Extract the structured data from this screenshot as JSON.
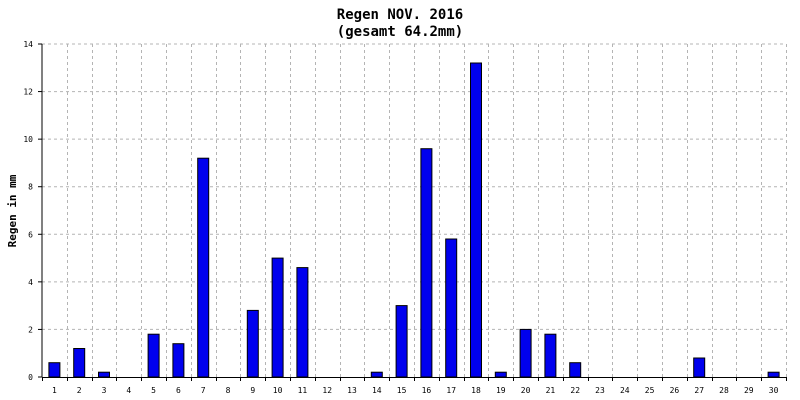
{
  "chart_data": {
    "type": "bar",
    "title": "Regen NOV. 2016",
    "subtitle": "(gesamt 64.2mm)",
    "ylabel": "Regen in mm",
    "xlabel": "",
    "ylim": [
      0,
      14
    ],
    "yticks": [
      0,
      2,
      4,
      6,
      8,
      10,
      12,
      14
    ],
    "grid": true,
    "categories": [
      "1",
      "2",
      "3",
      "4",
      "5",
      "6",
      "7",
      "8",
      "9",
      "10",
      "11",
      "12",
      "13",
      "14",
      "15",
      "16",
      "17",
      "18",
      "19",
      "20",
      "21",
      "22",
      "23",
      "24",
      "25",
      "26",
      "27",
      "28",
      "29",
      "30"
    ],
    "values": [
      0.6,
      1.2,
      0.2,
      0,
      1.8,
      1.4,
      9.2,
      0,
      2.8,
      5.0,
      4.6,
      0,
      0,
      0.2,
      3.0,
      9.6,
      5.8,
      13.2,
      0.2,
      2.0,
      1.8,
      0.6,
      0,
      0,
      0,
      0,
      0.8,
      0,
      0,
      0.2
    ],
    "bar_color": "#0000ee",
    "bar_stroke": "#000000",
    "grid_color": "#b4b4b4"
  }
}
